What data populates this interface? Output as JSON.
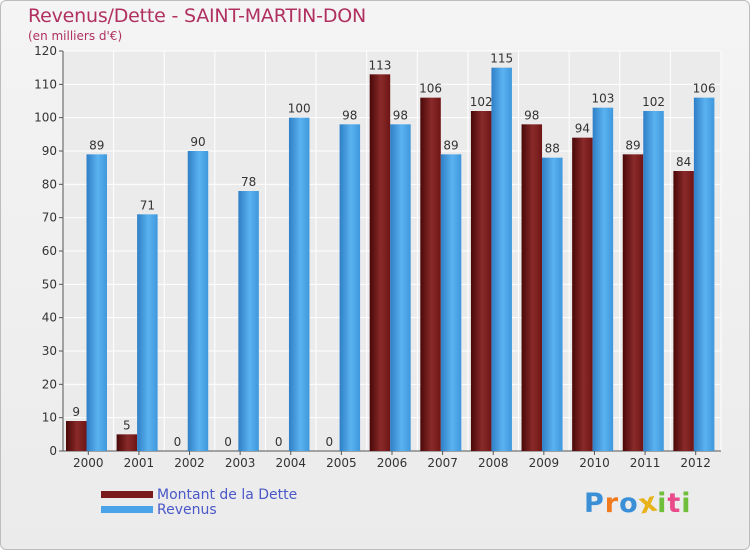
{
  "header": {
    "title": "Revenus/Dette - SAINT-MARTIN-DON",
    "subtitle": "(en milliers d'€)"
  },
  "legend": {
    "items": [
      {
        "label": "Montant de la Dette",
        "color": "#7a1a1a"
      },
      {
        "label": "Revenus",
        "color": "#4aa3e8"
      }
    ]
  },
  "logo": {
    "text": "Proxiti",
    "letters": [
      {
        "ch": "P",
        "color": "#3b8fd6"
      },
      {
        "ch": "r",
        "color": "#f07a1e"
      },
      {
        "ch": "o",
        "color": "#3b8fd6"
      },
      {
        "ch": "x",
        "color": "#e8b21a"
      },
      {
        "ch": "i",
        "color": "#6fbf3a"
      },
      {
        "ch": "t",
        "color": "#e84a8a"
      },
      {
        "ch": "i",
        "color": "#6fbf3a"
      }
    ]
  },
  "chart_data": {
    "type": "bar",
    "title": "Revenus/Dette - SAINT-MARTIN-DON",
    "subtitle": "(en milliers d'€)",
    "categories": [
      "2000",
      "2001",
      "2002",
      "2003",
      "2004",
      "2005",
      "2006",
      "2007",
      "2008",
      "2009",
      "2010",
      "2011",
      "2012"
    ],
    "series": [
      {
        "name": "Montant de la Dette",
        "color": "#7a1a1a",
        "values": [
          9,
          5,
          0,
          0,
          0,
          0,
          113,
          106,
          102,
          98,
          94,
          89,
          84
        ]
      },
      {
        "name": "Revenus",
        "color": "#4aa3e8",
        "values": [
          89,
          71,
          90,
          78,
          100,
          98,
          98,
          89,
          115,
          88,
          103,
          102,
          106
        ]
      }
    ],
    "ylim": [
      0,
      120
    ],
    "yticks": [
      0,
      10,
      20,
      30,
      40,
      50,
      60,
      70,
      80,
      90,
      100,
      110,
      120
    ],
    "grid": true,
    "legend_position": "bottom-left"
  }
}
